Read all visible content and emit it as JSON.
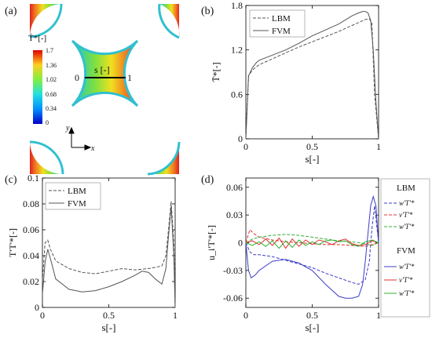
{
  "panels": {
    "a": {
      "label": "(a)",
      "colorbar_title": "T̄*[-]",
      "colorbar_ticks": [
        "1.7",
        "1.36",
        "1.02",
        "0.68",
        "0.34",
        "0"
      ],
      "line_label": "s [-]",
      "line_start": "0",
      "line_end": "1",
      "axis_y": "y",
      "axis_x": "x"
    },
    "b": {
      "label": "(b)"
    },
    "c": {
      "label": "(c)"
    },
    "d": {
      "label": "(d)",
      "legend_group_lbm": "LBM",
      "legend_group_fvm": "FVM",
      "legend_items_lbm": [
        "w'T'*",
        "v'T'*",
        "w'T'*"
      ],
      "legend_items_fvm": [
        "w'T'*",
        "v'T'*",
        "w'T'*"
      ]
    }
  },
  "chart_data": [
    {
      "type": "line",
      "panel": "b",
      "title": "",
      "xlabel": "s[-]",
      "ylabel": "T̄*[-]",
      "xlim": [
        0,
        1
      ],
      "ylim": [
        0,
        1.8
      ],
      "xticks": [
        0,
        0.5,
        1
      ],
      "xtick_labels": [
        "0",
        "0.5",
        "1"
      ],
      "yticks": [
        0,
        0.6,
        1.2,
        1.8
      ],
      "ytick_labels": [
        "0",
        "0.6",
        "1.2",
        "1.8"
      ],
      "legend_position": "top-left",
      "series": [
        {
          "name": "LBM",
          "color": "#555555",
          "dash": "dashed",
          "x": [
            0,
            0.02,
            0.05,
            0.1,
            0.2,
            0.3,
            0.4,
            0.5,
            0.6,
            0.7,
            0.8,
            0.85,
            0.9,
            0.93,
            0.95,
            0.97,
            1.0
          ],
          "y": [
            0,
            0.85,
            0.93,
            1.0,
            1.08,
            1.16,
            1.24,
            1.31,
            1.38,
            1.45,
            1.53,
            1.57,
            1.61,
            1.62,
            1.56,
            0.6,
            0
          ]
        },
        {
          "name": "FVM",
          "color": "#555555",
          "dash": "solid",
          "x": [
            0,
            0.02,
            0.05,
            0.08,
            0.1,
            0.2,
            0.3,
            0.4,
            0.5,
            0.6,
            0.7,
            0.8,
            0.85,
            0.88,
            0.9,
            0.92,
            0.94,
            0.96,
            0.98,
            1.0
          ],
          "y": [
            0,
            0.85,
            0.96,
            1.03,
            1.06,
            1.13,
            1.2,
            1.29,
            1.39,
            1.47,
            1.55,
            1.66,
            1.7,
            1.72,
            1.72,
            1.7,
            1.6,
            1.2,
            0.5,
            0
          ]
        }
      ]
    },
    {
      "type": "line",
      "panel": "c",
      "title": "",
      "xlabel": "s[-]",
      "ylabel": "T'T'*[-]",
      "xlim": [
        0,
        1
      ],
      "ylim": [
        0,
        0.1
      ],
      "xticks": [
        0,
        0.5,
        1
      ],
      "xtick_labels": [
        "0",
        "0.5",
        "1"
      ],
      "yticks": [
        0,
        0.02,
        0.04,
        0.06,
        0.08,
        0.1
      ],
      "ytick_labels": [
        "0",
        "0.02",
        "0.04",
        "0.06",
        "0.08",
        "0.1"
      ],
      "legend_position": "top-left",
      "series": [
        {
          "name": "LBM",
          "color": "#555555",
          "dash": "dashed",
          "x": [
            0,
            0.02,
            0.04,
            0.06,
            0.1,
            0.2,
            0.3,
            0.4,
            0.5,
            0.6,
            0.7,
            0.8,
            0.9,
            0.93,
            0.95,
            0.97,
            0.99,
            1.0
          ],
          "y": [
            0.02,
            0.05,
            0.052,
            0.045,
            0.036,
            0.03,
            0.027,
            0.026,
            0.028,
            0.03,
            0.029,
            0.03,
            0.032,
            0.04,
            0.06,
            0.082,
            0.05,
            0
          ]
        },
        {
          "name": "FVM",
          "color": "#555555",
          "dash": "solid",
          "x": [
            0,
            0.02,
            0.04,
            0.07,
            0.1,
            0.2,
            0.3,
            0.4,
            0.5,
            0.6,
            0.7,
            0.75,
            0.8,
            0.85,
            0.9,
            0.93,
            0.95,
            0.97,
            0.99,
            1.0
          ],
          "y": [
            0.01,
            0.035,
            0.045,
            0.034,
            0.022,
            0.014,
            0.012,
            0.013,
            0.016,
            0.02,
            0.025,
            0.028,
            0.027,
            0.022,
            0.018,
            0.03,
            0.055,
            0.078,
            0.04,
            0
          ]
        }
      ]
    },
    {
      "type": "line",
      "panel": "d",
      "title": "",
      "xlabel": "s[-]",
      "ylabel": "u_i'T'*[-]",
      "xlim": [
        0,
        1
      ],
      "ylim": [
        -0.07,
        0.07
      ],
      "xticks": [
        0,
        0.5,
        1
      ],
      "xtick_labels": [
        "0",
        "0.5",
        "1"
      ],
      "yticks": [
        -0.06,
        -0.03,
        0,
        0.03,
        0.06
      ],
      "ytick_labels": [
        "-0.06",
        "-0.03",
        "0",
        "0.03",
        "0.06"
      ],
      "legend_position": "right",
      "series": [
        {
          "name": "LBM w'T'*",
          "color": "#3c3cc8",
          "dash": "dashed",
          "x": [
            0,
            0.03,
            0.06,
            0.1,
            0.2,
            0.3,
            0.4,
            0.5,
            0.6,
            0.7,
            0.8,
            0.85,
            0.9,
            0.93,
            0.95,
            0.97,
            1.0
          ],
          "y": [
            0,
            -0.01,
            -0.013,
            -0.013,
            -0.015,
            -0.019,
            -0.023,
            -0.027,
            -0.033,
            -0.038,
            -0.043,
            -0.045,
            -0.04,
            -0.02,
            0.015,
            0.04,
            0
          ]
        },
        {
          "name": "LBM v'T'*",
          "color": "#e03030",
          "dash": "dashed",
          "x": [
            0,
            0.03,
            0.06,
            0.1,
            0.2,
            0.3,
            0.4,
            0.5,
            0.6,
            0.7,
            0.8,
            0.9,
            0.95,
            1.0
          ],
          "y": [
            0,
            0.014,
            0.01,
            0.006,
            0.003,
            0.001,
            0,
            -0.001,
            -0.002,
            -0.002,
            -0.003,
            -0.004,
            -0.002,
            0
          ]
        },
        {
          "name": "LBM w'T'* (green)",
          "color": "#30b030",
          "dash": "dashed",
          "x": [
            0,
            0.05,
            0.1,
            0.2,
            0.3,
            0.4,
            0.5,
            0.6,
            0.7,
            0.8,
            0.9,
            0.95,
            1.0
          ],
          "y": [
            0,
            0.004,
            0.006,
            0.008,
            0.009,
            0.008,
            0.006,
            0.004,
            0.002,
            0.001,
            -0.001,
            -0.003,
            0
          ]
        },
        {
          "name": "FVM w'T'*",
          "color": "#3c3cc8",
          "dash": "solid",
          "x": [
            0,
            0.02,
            0.04,
            0.07,
            0.1,
            0.2,
            0.3,
            0.4,
            0.5,
            0.6,
            0.7,
            0.75,
            0.8,
            0.85,
            0.88,
            0.9,
            0.92,
            0.94,
            0.96,
            0.98,
            1.0
          ],
          "y": [
            0,
            -0.03,
            -0.038,
            -0.035,
            -0.03,
            -0.02,
            -0.018,
            -0.022,
            -0.03,
            -0.045,
            -0.058,
            -0.06,
            -0.06,
            -0.058,
            -0.045,
            -0.02,
            0.01,
            0.04,
            0.05,
            0.04,
            0
          ]
        },
        {
          "name": "FVM v'T'*",
          "color": "#e03030",
          "dash": "solid",
          "x": [
            0,
            0.05,
            0.1,
            0.15,
            0.2,
            0.25,
            0.3,
            0.35,
            0.4,
            0.45,
            0.5,
            0.55,
            0.6,
            0.65,
            0.7,
            0.75,
            0.8,
            0.85,
            0.9,
            0.95,
            1.0
          ],
          "y": [
            0,
            0.002,
            -0.002,
            0.004,
            -0.003,
            0.005,
            -0.006,
            0.004,
            -0.004,
            0.003,
            -0.002,
            0.003,
            0.001,
            -0.002,
            0.002,
            0.004,
            -0.001,
            -0.003,
            -0.002,
            0.002,
            0
          ]
        },
        {
          "name": "FVM w'T'* (green)",
          "color": "#30b030",
          "dash": "solid",
          "x": [
            0,
            0.05,
            0.1,
            0.15,
            0.2,
            0.25,
            0.3,
            0.35,
            0.4,
            0.45,
            0.5,
            0.55,
            0.6,
            0.65,
            0.7,
            0.75,
            0.8,
            0.85,
            0.9,
            0.95,
            1.0
          ],
          "y": [
            0,
            -0.003,
            0.001,
            -0.004,
            0.002,
            -0.006,
            0.002,
            -0.005,
            0.003,
            -0.003,
            0.001,
            -0.002,
            0.002,
            0.003,
            0.001,
            0.002,
            -0.002,
            -0.004,
            0.001,
            0.003,
            0
          ]
        }
      ]
    }
  ]
}
